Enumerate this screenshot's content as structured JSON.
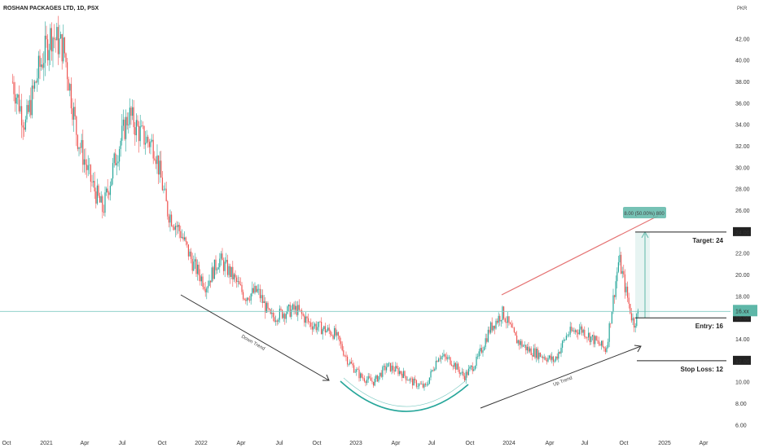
{
  "chart_data": {
    "type": "candlestick",
    "title": "ROSHAN PACKAGES LTD, 1D, PSX",
    "currency": "PKR",
    "y_ticks": [
      "6.00",
      "8.00",
      "10.00",
      "12.00",
      "14.00",
      "16.00",
      "18.00",
      "20.00",
      "22.00",
      "24.00",
      "26.00",
      "28.00",
      "30.00",
      "32.00",
      "34.00",
      "36.00",
      "38.00",
      "40.00",
      "42.00"
    ],
    "ylim": [
      5.0,
      44.5
    ],
    "x_ticks": [
      "Oct",
      "2021",
      "Apr",
      "Jul",
      "Oct",
      "2022",
      "Apr",
      "Jul",
      "Oct",
      "2023",
      "Apr",
      "Jul",
      "Oct",
      "2024",
      "Apr",
      "Jul",
      "Oct",
      "2025",
      "Apr"
    ],
    "colors": {
      "up": "#26a69a",
      "down": "#ef5350",
      "target_line": "#e57373",
      "trend_line": "#333333",
      "arc": "#26a69a",
      "measure": "#5eb7a8",
      "current_price": "#80cbc4"
    },
    "series": [
      {
        "date": "2020-10",
        "value": 38
      },
      {
        "date": "2020-11",
        "value": 34
      },
      {
        "date": "2020-12",
        "value": 39
      },
      {
        "date": "2021-01",
        "value": 42.5
      },
      {
        "date": "2021-02",
        "value": 41
      },
      {
        "date": "2021-03",
        "value": 33
      },
      {
        "date": "2021-04",
        "value": 29
      },
      {
        "date": "2021-05",
        "value": 26
      },
      {
        "date": "2021-06",
        "value": 31
      },
      {
        "date": "2021-07",
        "value": 35
      },
      {
        "date": "2021-08",
        "value": 33
      },
      {
        "date": "2021-09",
        "value": 32
      },
      {
        "date": "2021-10",
        "value": 26
      },
      {
        "date": "2021-11",
        "value": 24
      },
      {
        "date": "2021-12",
        "value": 21
      },
      {
        "date": "2022-01",
        "value": 19
      },
      {
        "date": "2022-02",
        "value": 21.5
      },
      {
        "date": "2022-03",
        "value": 20
      },
      {
        "date": "2022-04",
        "value": 18
      },
      {
        "date": "2022-05",
        "value": 18.5
      },
      {
        "date": "2022-06",
        "value": 16
      },
      {
        "date": "2022-07",
        "value": 16.5
      },
      {
        "date": "2022-08",
        "value": 16.8
      },
      {
        "date": "2022-09",
        "value": 15.5
      },
      {
        "date": "2022-10",
        "value": 15
      },
      {
        "date": "2022-11",
        "value": 14.5
      },
      {
        "date": "2022-12",
        "value": 12
      },
      {
        "date": "2023-01",
        "value": 10.5
      },
      {
        "date": "2023-02",
        "value": 10
      },
      {
        "date": "2023-03",
        "value": 11.5
      },
      {
        "date": "2023-04",
        "value": 11
      },
      {
        "date": "2023-05",
        "value": 10
      },
      {
        "date": "2023-06",
        "value": 9.5
      },
      {
        "date": "2023-07",
        "value": 12.5
      },
      {
        "date": "2023-08",
        "value": 12
      },
      {
        "date": "2023-09",
        "value": 10.5
      },
      {
        "date": "2023-10",
        "value": 12
      },
      {
        "date": "2023-11",
        "value": 15
      },
      {
        "date": "2023-12",
        "value": 16.5
      },
      {
        "date": "2024-01",
        "value": 14
      },
      {
        "date": "2024-02",
        "value": 13
      },
      {
        "date": "2024-03",
        "value": 12.5
      },
      {
        "date": "2024-04",
        "value": 12
      },
      {
        "date": "2024-05",
        "value": 14.5
      },
      {
        "date": "2024-06",
        "value": 15
      },
      {
        "date": "2024-07",
        "value": 14
      },
      {
        "date": "2024-08",
        "value": 13
      },
      {
        "date": "2024-09",
        "value": 21.5
      },
      {
        "date": "2024-10",
        "value": 16
      },
      {
        "date": "2024-10-20",
        "value": 15.5
      },
      {
        "date": "2024-11-01",
        "value": 16.5
      }
    ],
    "horizontal_levels": [
      {
        "label": "Target: 24",
        "price": 24,
        "badge": "24.00"
      },
      {
        "label": "Entry: 16",
        "price": 16,
        "badge": "16.00"
      },
      {
        "label": "Stop Loss: 12",
        "price": 12,
        "badge": "12.00"
      }
    ],
    "current_price_badge": "16.xx",
    "measure_label": "8.00 (50.00%) 800",
    "annotations": [
      "Down Trend",
      "Up Trend"
    ],
    "grid": false
  }
}
